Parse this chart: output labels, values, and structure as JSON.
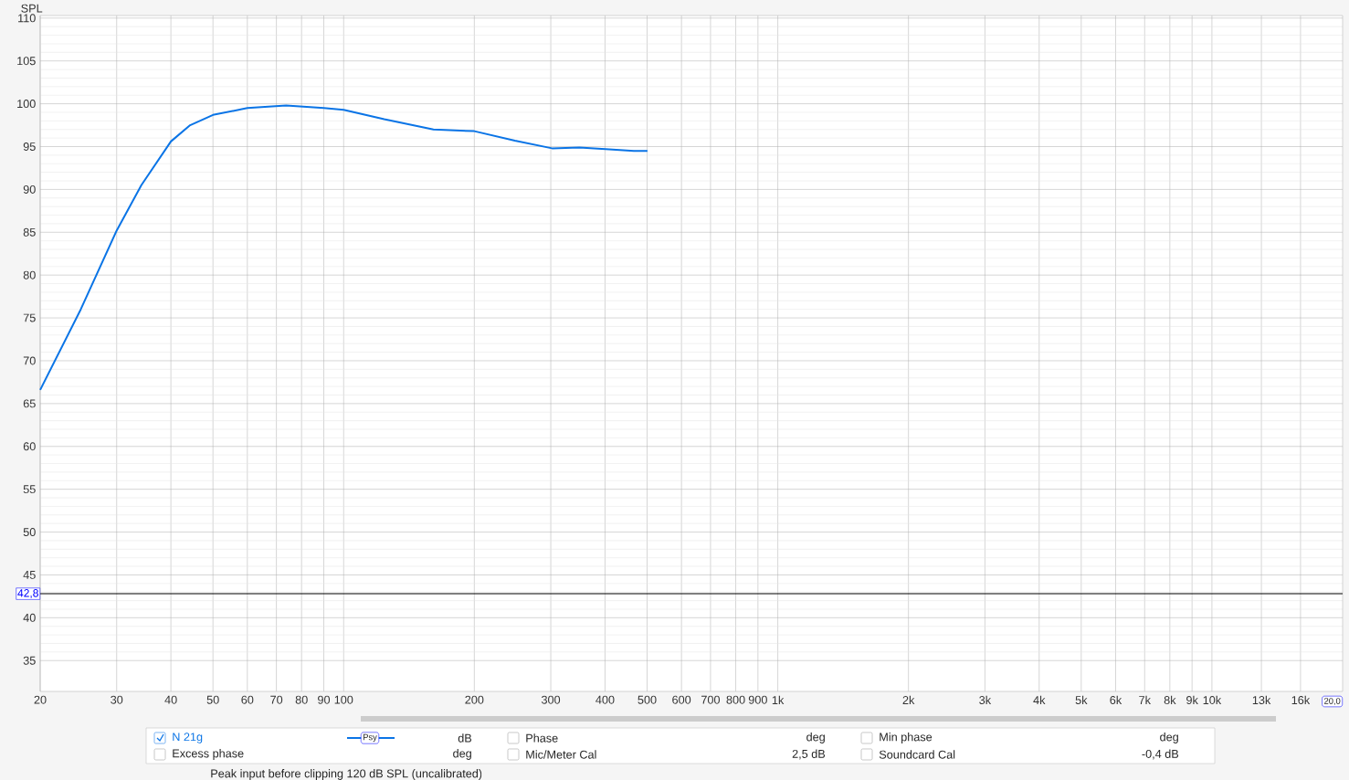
{
  "chart_data": {
    "type": "line",
    "ylabel": "SPL",
    "log": "x",
    "grid": true,
    "legend": "bottom",
    "xlim": [
      20,
      20000
    ],
    "ylim": [
      31.4,
      110.3
    ],
    "xticks": [
      20,
      30,
      40,
      50,
      60,
      70,
      80,
      90,
      100,
      200,
      300,
      400,
      500,
      600,
      700,
      800,
      900,
      {
        "value": 1000,
        "label": "1k"
      },
      {
        "value": 2000,
        "label": "2k"
      },
      {
        "value": 3000,
        "label": "3k"
      },
      {
        "value": 4000,
        "label": "4k"
      },
      {
        "value": 5000,
        "label": "5k"
      },
      {
        "value": 6000,
        "label": "6k"
      },
      {
        "value": 7000,
        "label": "7k"
      },
      {
        "value": 8000,
        "label": "8k"
      },
      {
        "value": 9000,
        "label": "9k"
      },
      {
        "value": 10000,
        "label": "10k"
      },
      {
        "value": 13000,
        "label": "13k"
      },
      {
        "value": 16000,
        "label": "16k"
      }
    ],
    "yticks": [
      35,
      40,
      45,
      50,
      55,
      60,
      65,
      70,
      75,
      80,
      85,
      90,
      95,
      100,
      105,
      110
    ],
    "ref_lines": [
      {
        "axis": "y",
        "value": 42.8,
        "label": "42,8",
        "color": "#000000"
      }
    ],
    "series": [
      {
        "name": "N 21g",
        "color": "#0a74e6",
        "x": [
          20,
          24.8,
          30,
          34.2,
          40,
          44.3,
          50,
          60,
          73.7,
          90,
          100,
          124,
          161,
          200,
          248,
          302,
          349,
          401,
          466,
          501
        ],
        "values": [
          66.6,
          76.0,
          85.2,
          90.5,
          95.6,
          97.5,
          98.7,
          99.5,
          99.8,
          99.5,
          99.3,
          98.2,
          97.0,
          96.8,
          95.7,
          94.8,
          94.9,
          94.7,
          94.5,
          94.5
        ]
      }
    ],
    "annotations": [
      "Psy",
      "dB",
      "Excess phase",
      "deg",
      "Phase",
      "deg",
      "Mic/Meter Cal",
      "2,5 dB",
      "Min phase",
      "deg",
      "Soundcard Cal",
      "-0,4 dB",
      "Peak input before clipping 120 dB SPL (uncalibrated)",
      "20,0"
    ]
  }
}
